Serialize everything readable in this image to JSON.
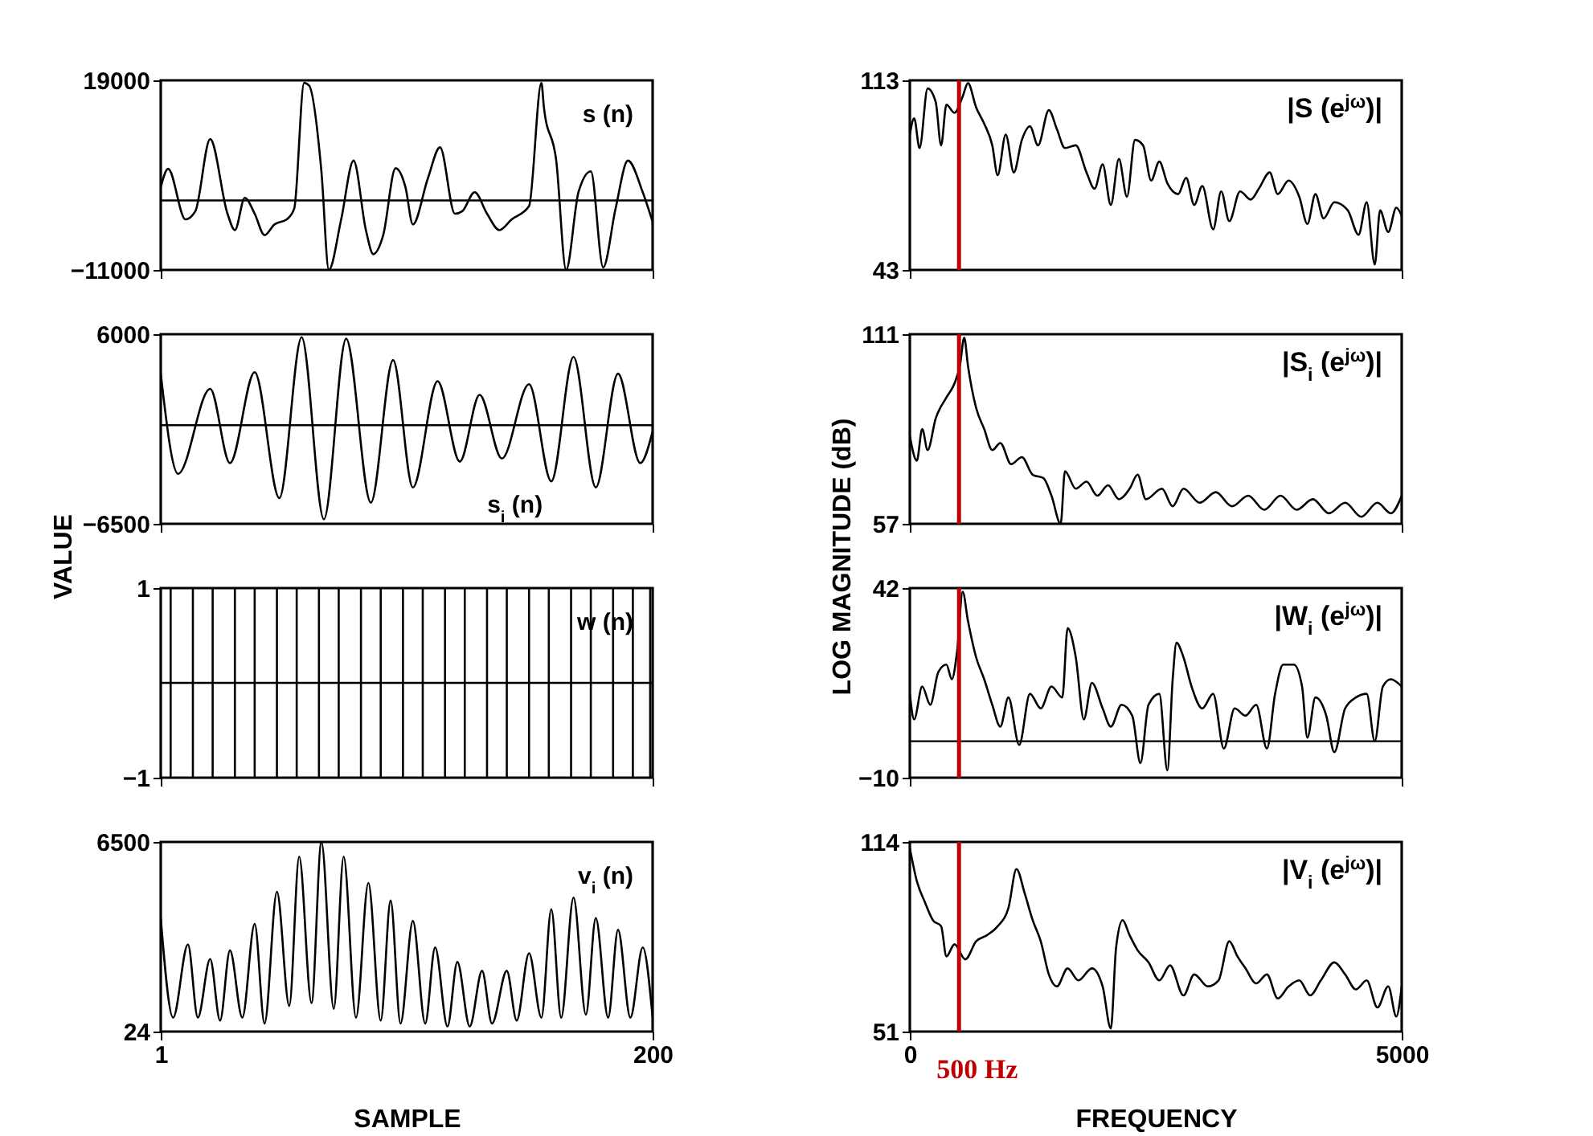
{
  "chart_data": [
    {
      "type": "line",
      "xlim": [
        1,
        200
      ],
      "xticks": [
        1,
        200
      ],
      "ylim": [
        -11000,
        19000
      ],
      "yticks": [
        -11000,
        19000
      ],
      "tick_labels": "y",
      "ref_lines": [
        {
          "axis": "y",
          "value": 0,
          "color": "#000000"
        }
      ],
      "series": [
        {
          "name": "s (n)",
          "color": "#000000",
          "x": [
            1,
            4,
            11,
            15,
            21,
            28,
            31,
            35,
            39,
            43,
            47,
            52,
            55,
            59,
            61,
            66,
            69,
            74,
            79,
            84,
            87,
            91,
            96,
            100,
            103,
            109,
            114,
            120,
            123,
            128,
            133,
            138,
            143,
            150,
            155,
            156,
            161,
            165,
            170,
            175,
            180,
            185,
            190,
            196,
            200
          ],
          "values": [
            2100,
            5000,
            -3000,
            -1700,
            9700,
            -2100,
            -4700,
            400,
            -2100,
            -5500,
            -3800,
            -3000,
            -1300,
            18600,
            18200,
            4600,
            -11000,
            -3000,
            6300,
            -4700,
            -8500,
            -5500,
            5100,
            2100,
            -3800,
            3400,
            8400,
            -2100,
            -1700,
            1300,
            -2100,
            -4700,
            -3000,
            -900,
            18600,
            14800,
            6300,
            -11000,
            1300,
            4600,
            -10600,
            -1300,
            6300,
            1300,
            -3400
          ]
        }
      ]
    },
    {
      "type": "line",
      "ylabel": "VALUE",
      "xlim": [
        1,
        200
      ],
      "xticks": [
        1,
        200
      ],
      "ylim": [
        -6500,
        6000
      ],
      "yticks": [
        -6500,
        6000
      ],
      "tick_labels": "y",
      "ref_lines": [
        {
          "axis": "y",
          "value": 0,
          "color": "#000000"
        }
      ],
      "series": [
        {
          "name": "s$_{i}$ (n)",
          "color": "#000000",
          "x": [
            1,
            8,
            21,
            29,
            39,
            49,
            58,
            67,
            76,
            86,
            95,
            103,
            113,
            122,
            130,
            139,
            150,
            159,
            168,
            177,
            186,
            195,
            200
          ],
          "values": [
            3400,
            -3200,
            2400,
            -2500,
            3500,
            -4800,
            5800,
            -6200,
            5700,
            -5100,
            4300,
            -4100,
            2900,
            -2400,
            2000,
            -2200,
            2700,
            -3700,
            4500,
            -4100,
            3400,
            -2500,
            -400
          ]
        }
      ]
    },
    {
      "type": "line",
      "xlim": [
        1,
        200
      ],
      "xticks": [
        1,
        200
      ],
      "ylim": [
        -1,
        1
      ],
      "yticks": [
        -1,
        1
      ],
      "tick_labels": "y",
      "series": [
        {
          "name": "w (n)",
          "color": "#000000",
          "x": [
            1,
            5,
            5,
            5,
            5,
            14,
            14,
            14,
            14,
            22,
            22,
            22,
            22,
            31,
            31,
            31,
            31,
            39,
            39,
            39,
            39,
            48,
            48,
            48,
            48,
            56,
            56,
            56,
            56,
            65,
            65,
            65,
            65,
            73,
            73,
            73,
            73,
            82,
            82,
            82,
            82,
            90,
            90,
            90,
            90,
            99,
            99,
            99,
            99,
            107,
            107,
            107,
            107,
            116,
            116,
            116,
            116,
            124,
            124,
            124,
            124,
            133,
            133,
            133,
            133,
            141,
            141,
            141,
            141,
            150,
            150,
            150,
            150,
            158,
            158,
            158,
            158,
            167,
            167,
            167,
            167,
            175,
            175,
            175,
            175,
            184,
            184,
            184,
            184,
            192,
            192,
            192,
            192,
            199,
            199,
            199,
            199,
            200
          ],
          "values": [
            0,
            0,
            1,
            -1,
            0,
            0,
            1,
            -1,
            0,
            0,
            1,
            -1,
            0,
            0,
            1,
            -1,
            0,
            0,
            1,
            -1,
            0,
            0,
            1,
            -1,
            0,
            0,
            1,
            -1,
            0,
            0,
            1,
            -1,
            0,
            0,
            1,
            -1,
            0,
            0,
            1,
            -1,
            0,
            0,
            1,
            -1,
            0,
            0,
            1,
            -1,
            0,
            0,
            1,
            -1,
            0,
            0,
            1,
            -1,
            0,
            0,
            1,
            -1,
            0,
            0,
            1,
            -1,
            0,
            0,
            1,
            -1,
            0,
            0,
            1,
            -1,
            0,
            0,
            1,
            -1,
            0,
            0,
            1,
            -1,
            0,
            0,
            1,
            -1,
            0,
            0,
            1,
            -1,
            0,
            0,
            1,
            -1,
            0,
            0,
            1,
            -1,
            0,
            0
          ]
        }
      ]
    },
    {
      "type": "line",
      "xlabel": "SAMPLE",
      "xlim": [
        1,
        200
      ],
      "xticks": [
        1,
        200
      ],
      "ylim": [
        24,
        6500
      ],
      "yticks": [
        24,
        6500
      ],
      "series": [
        {
          "name": "v$_{i}$ (n)",
          "color": "#000000",
          "x": [
            1,
            6,
            12,
            16,
            21,
            25,
            29,
            34,
            39,
            43,
            48,
            53,
            57,
            62,
            66,
            71,
            75,
            80,
            85,
            90,
            94,
            98,
            103,
            108,
            112,
            117,
            121,
            126,
            131,
            135,
            141,
            145,
            150,
            155,
            159,
            163,
            168,
            173,
            177,
            182,
            186,
            191,
            196,
            200
          ],
          "values": [
            3900,
            500,
            3000,
            500,
            2500,
            400,
            2800,
            500,
            3700,
            300,
            4800,
            900,
            6000,
            1000,
            6500,
            800,
            6000,
            500,
            5100,
            400,
            4500,
            300,
            3800,
            300,
            2900,
            200,
            2400,
            200,
            2100,
            300,
            2100,
            400,
            2700,
            500,
            4200,
            500,
            4600,
            600,
            3900,
            500,
            3500,
            500,
            2900,
            500
          ]
        }
      ]
    },
    {
      "type": "line",
      "xlim": [
        0,
        5000
      ],
      "xticks": [
        0,
        5000
      ],
      "ylim": [
        43,
        113
      ],
      "yticks": [
        43,
        113
      ],
      "tick_labels": "y",
      "ref_lines": [
        {
          "axis": "x",
          "value": 500,
          "color": "#c00000"
        }
      ],
      "series": [
        {
          "name": "|S (e$^{jω}$)|",
          "color": "#000000",
          "x": [
            0,
            44,
            99,
            181,
            263,
            318,
            372,
            454,
            537,
            591,
            674,
            756,
            838,
            893,
            975,
            1057,
            1139,
            1221,
            1303,
            1413,
            1495,
            1577,
            1687,
            1796,
            1878,
            1960,
            2043,
            2125,
            2207,
            2289,
            2371,
            2453,
            2536,
            2618,
            2727,
            2809,
            2891,
            2973,
            3083,
            3165,
            3247,
            3357,
            3466,
            3548,
            3658,
            3740,
            3850,
            3959,
            4041,
            4123,
            4206,
            4315,
            4452,
            4561,
            4644,
            4726,
            4780,
            4863,
            4945,
            5000
          ],
          "values": [
            93,
            99,
            88,
            110,
            105,
            89,
            104,
            101,
            107,
            112,
            103,
            97,
            89,
            78,
            93,
            79,
            91,
            96,
            89,
            102,
            95,
            88,
            89,
            79,
            73,
            82,
            67,
            84,
            70,
            91,
            89,
            76,
            83,
            75,
            71,
            77,
            67,
            74,
            58,
            72,
            61,
            72,
            69,
            73,
            79,
            71,
            76,
            70,
            60,
            71,
            62,
            68,
            65,
            56,
            68,
            45,
            65,
            57,
            66,
            63
          ]
        }
      ]
    },
    {
      "type": "line",
      "ylabel": "LOG MAGNITUDE (dB)",
      "xlim": [
        0,
        5000
      ],
      "xticks": [
        0,
        5000
      ],
      "ylim": [
        57,
        111
      ],
      "yticks": [
        57,
        111
      ],
      "tick_labels": "y",
      "ref_lines": [
        {
          "axis": "x",
          "value": 500,
          "color": "#c00000"
        }
      ],
      "series": [
        {
          "name": "|S$_{i}$ (e$^{jω}$)|",
          "color": "#000000",
          "x": [
            0,
            71,
            126,
            181,
            263,
            372,
            454,
            509,
            553,
            591,
            674,
            756,
            838,
            920,
            1030,
            1139,
            1248,
            1358,
            1440,
            1533,
            1577,
            1687,
            1796,
            1906,
            2015,
            2125,
            2234,
            2316,
            2399,
            2563,
            2672,
            2782,
            2946,
            3110,
            3275,
            3439,
            3603,
            3768,
            3932,
            4096,
            4260,
            4425,
            4589,
            4753,
            4890,
            5000
          ],
          "values": [
            82,
            75,
            84,
            78,
            87,
            93,
            97,
            102,
            110,
            102,
            90,
            84,
            78,
            80,
            74,
            76,
            71,
            70,
            65,
            57,
            72,
            67,
            69,
            65,
            68,
            64,
            67,
            71,
            64,
            67,
            62,
            67,
            63,
            66,
            62,
            65,
            61,
            65,
            61,
            64,
            60,
            63,
            59,
            63,
            60,
            65
          ]
        }
      ]
    },
    {
      "type": "line",
      "xlim": [
        0,
        5000
      ],
      "xticks": [
        0,
        5000
      ],
      "ylim": [
        -10,
        42
      ],
      "yticks": [
        -10,
        42
      ],
      "tick_labels": "y",
      "ref_lines": [
        {
          "axis": "y",
          "value": 0,
          "color": "#000000"
        },
        {
          "axis": "x",
          "value": 500,
          "color": "#c00000"
        }
      ],
      "series": [
        {
          "name": "|W$_{i}$ (e$^{jω}$)|",
          "color": "#000000",
          "x": [
            0,
            44,
            126,
            208,
            290,
            372,
            427,
            482,
            537,
            591,
            674,
            756,
            838,
            920,
            1002,
            1112,
            1221,
            1331,
            1440,
            1550,
            1604,
            1687,
            1769,
            1851,
            1960,
            2043,
            2152,
            2261,
            2344,
            2426,
            2536,
            2618,
            2672,
            2711,
            2782,
            2864,
            2973,
            3083,
            3192,
            3302,
            3412,
            3521,
            3630,
            3713,
            3795,
            3904,
            3987,
            4041,
            4123,
            4233,
            4315,
            4425,
            4534,
            4644,
            4726,
            4808,
            4890,
            5000
          ],
          "values": [
            13,
            6,
            15,
            10,
            19,
            21,
            17,
            25,
            41,
            33,
            23,
            17,
            10,
            4,
            12,
            -1,
            13,
            9,
            15,
            12,
            31,
            23,
            6,
            16,
            9,
            4,
            10,
            7,
            -6,
            10,
            13,
            -8,
            17,
            27,
            23,
            15,
            9,
            13,
            -2,
            9,
            7,
            10,
            -2,
            13,
            21,
            21,
            15,
            1,
            12,
            7,
            -3,
            9,
            12,
            13,
            0,
            15,
            17,
            15
          ]
        }
      ]
    },
    {
      "type": "line",
      "xlabel": "FREQUENCY",
      "xlim": [
        0,
        5000
      ],
      "xticks": [
        0,
        5000
      ],
      "ylim": [
        51,
        114
      ],
      "yticks": [
        51,
        114
      ],
      "ref_lines": [
        {
          "axis": "x",
          "value": 500,
          "color": "#c00000",
          "label": "500 Hz"
        }
      ],
      "series": [
        {
          "name": "|V$_{i}$ (e$^{jω}$)|",
          "color": "#000000",
          "x": [
            0,
            71,
            153,
            235,
            318,
            372,
            454,
            564,
            674,
            783,
            893,
            1002,
            1084,
            1167,
            1249,
            1331,
            1413,
            1495,
            1604,
            1714,
            1851,
            1960,
            2043,
            2097,
            2163,
            2234,
            2316,
            2426,
            2536,
            2645,
            2782,
            2891,
            3028,
            3138,
            3247,
            3330,
            3412,
            3521,
            3630,
            3740,
            3850,
            3959,
            4069,
            4178,
            4315,
            4425,
            4534,
            4644,
            4753,
            4863,
            4945,
            5000
          ],
          "values": [
            112,
            101,
            94,
            88,
            86,
            76,
            80,
            75,
            81,
            83,
            86,
            92,
            105,
            97,
            88,
            81,
            70,
            66,
            72,
            68,
            72,
            66,
            52,
            79,
            88,
            83,
            78,
            74,
            68,
            73,
            63,
            70,
            66,
            68,
            81,
            76,
            72,
            67,
            70,
            62,
            66,
            68,
            63,
            68,
            74,
            70,
            65,
            68,
            59,
            66,
            56,
            66
          ]
        }
      ]
    }
  ]
}
